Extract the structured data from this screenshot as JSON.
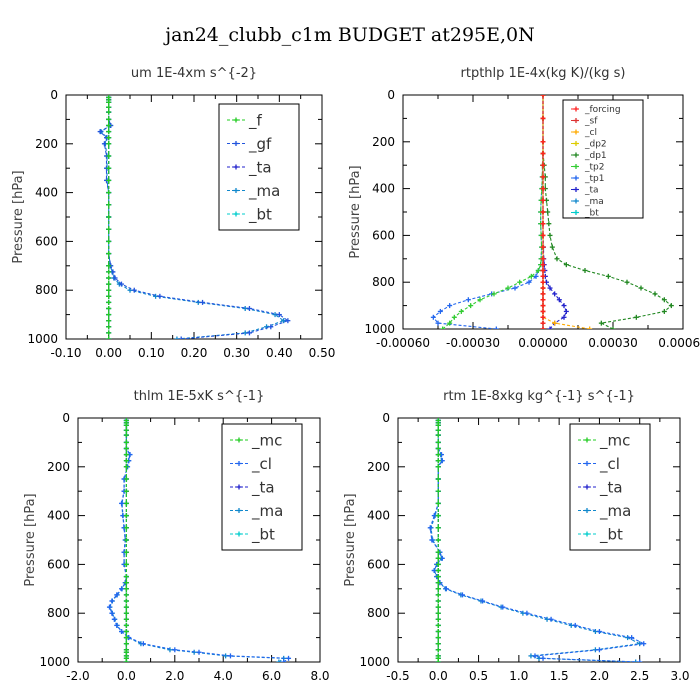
{
  "figure_title": "jan24_clubb_c1m  BUDGET at295E,0N",
  "chart_data": [
    {
      "type": "line",
      "title": "um  1E-4xm s^{-2}",
      "ylabel": "Pressure [hPa]",
      "xlim": [
        -0.1,
        0.5
      ],
      "ylim": [
        1000,
        0
      ],
      "xticks": [
        "-0.10",
        "0.00",
        "0.10",
        "0.20",
        "0.30",
        "0.40",
        "0.50"
      ],
      "yticks": [
        "0",
        "200",
        "400",
        "600",
        "800",
        "1000"
      ],
      "legend_position": "top-right",
      "y": [
        1000,
        975,
        950,
        925,
        900,
        875,
        850,
        825,
        800,
        775,
        750,
        725,
        700,
        650,
        600,
        550,
        500,
        450,
        400,
        350,
        300,
        250,
        200,
        175,
        150,
        125,
        100,
        70,
        50,
        30,
        20,
        10
      ],
      "series": [
        {
          "name": "_f",
          "color": "#22cc22",
          "values": [
            0,
            0,
            0,
            0,
            0,
            0,
            0,
            0,
            0,
            0,
            0,
            0,
            0,
            0,
            0,
            0,
            0,
            0,
            0,
            0,
            0,
            0,
            0,
            0,
            0,
            0,
            0,
            0,
            0,
            0,
            0,
            0
          ]
        },
        {
          "name": "_gf",
          "color": "#2255dd",
          "values": [
            0.17,
            0.33,
            0.38,
            0.42,
            0.4,
            0.33,
            0.22,
            0.12,
            0.06,
            0.03,
            0.015,
            0.01,
            0.005,
            0,
            0,
            0,
            0,
            0,
            0,
            -0.005,
            -0.005,
            -0.005,
            -0.01,
            -0.005,
            -0.02,
            0.005,
            0,
            0,
            0,
            0,
            0,
            0
          ]
        },
        {
          "name": "_ta",
          "color": "#2222cc",
          "values": [
            0,
            0,
            0,
            0,
            0,
            0,
            0,
            0,
            0,
            0,
            0,
            0,
            0,
            0,
            0,
            0,
            0,
            0,
            0,
            0,
            0,
            0,
            0,
            0,
            0,
            0,
            0,
            0,
            0,
            0,
            0,
            0
          ]
        },
        {
          "name": "_ma",
          "color": "#1188cc",
          "values": [
            0.16,
            0.32,
            0.37,
            0.41,
            0.39,
            0.32,
            0.21,
            0.11,
            0.05,
            0.025,
            0.012,
            0.008,
            0.004,
            0,
            0,
            0,
            0,
            0,
            0,
            -0.004,
            -0.004,
            -0.004,
            -0.008,
            -0.004,
            -0.018,
            0.004,
            0,
            0,
            0,
            0,
            0,
            0
          ]
        },
        {
          "name": "_bt",
          "color": "#00cccc",
          "values": [
            0,
            0,
            0,
            0,
            0,
            0,
            0,
            0,
            0,
            0,
            0,
            0,
            0,
            0,
            0,
            0,
            0,
            0,
            0,
            0,
            0,
            0,
            0,
            0,
            0,
            0,
            0,
            0,
            0,
            0,
            0,
            0
          ]
        }
      ]
    },
    {
      "type": "line",
      "title": "rtpthlp  1E-4x(kg K)/(kg s)",
      "ylabel": "Pressure [hPa]",
      "xlim": [
        -0.0006,
        0.0006
      ],
      "ylim": [
        1000,
        0
      ],
      "xticks": [
        "-0.00060",
        "-0.00030",
        "0.00000",
        "0.00030",
        "0.00060"
      ],
      "yticks": [
        "0",
        "200",
        "400",
        "600",
        "800",
        "1000"
      ],
      "legend_position": "top-right",
      "y": [
        1000,
        975,
        950,
        925,
        900,
        875,
        850,
        825,
        800,
        775,
        750,
        725,
        700,
        650,
        600,
        550,
        500,
        450,
        400,
        350,
        300,
        250,
        200,
        100,
        0
      ],
      "series": [
        {
          "name": "_forcing",
          "color": "#ff2222",
          "values": [
            0,
            0,
            0,
            0,
            0,
            0,
            0,
            0,
            0,
            0,
            0,
            0,
            0,
            0,
            0,
            0,
            0,
            0,
            0,
            0,
            0,
            0,
            0,
            0,
            0
          ]
        },
        {
          "name": "_sf",
          "color": "#dd3333",
          "values": [
            0,
            0,
            0,
            0,
            0,
            0,
            0,
            0,
            0,
            0,
            0,
            0,
            0,
            0,
            0,
            0,
            0,
            0,
            0,
            0,
            0,
            0,
            0,
            0,
            0
          ]
        },
        {
          "name": "_cl",
          "color": "#ffaa00",
          "values": [
            0.0002,
            5e-05,
            0,
            0,
            0,
            0,
            0,
            0,
            0,
            0,
            0,
            0,
            0,
            0,
            0,
            0,
            0,
            0,
            0,
            0,
            0,
            0,
            0,
            0,
            0
          ]
        },
        {
          "name": "_dp2",
          "color": "#ddcc00",
          "values": [
            0,
            0,
            0,
            0,
            0,
            0,
            0,
            0,
            0,
            0,
            0,
            0,
            0,
            0,
            0,
            0,
            0,
            0,
            0,
            0,
            0,
            0,
            0,
            0,
            0
          ]
        },
        {
          "name": "_dp1",
          "color": "#228822",
          "values": [
            0.0003,
            0.00025,
            0.0004,
            0.00052,
            0.00055,
            0.00052,
            0.00048,
            0.00042,
            0.00036,
            0.00028,
            0.00018,
            0.0001,
            6e-05,
            4e-05,
            3e-05,
            2.5e-05,
            2e-05,
            1.5e-05,
            1e-05,
            1e-05,
            5e-06,
            0,
            0,
            0,
            0
          ]
        },
        {
          "name": "_tp2",
          "color": "#33cc33",
          "values": [
            -0.00043,
            -0.0004,
            -0.00038,
            -0.00035,
            -0.00031,
            -0.00027,
            -0.00021,
            -0.00015,
            -0.0001,
            -5e-05,
            -2e-05,
            -1e-05,
            -8e-06,
            -6e-06,
            -8e-06,
            -1e-05,
            -1e-05,
            -8e-06,
            -5e-06,
            -3e-06,
            -2e-06,
            0,
            0,
            0,
            0
          ]
        },
        {
          "name": "_tp1",
          "color": "#2266ee",
          "values": [
            -0.0002,
            -0.00045,
            -0.00047,
            -0.00044,
            -0.0004,
            -0.00032,
            -0.00022,
            -0.00012,
            -6e-05,
            -3e-05,
            -2e-05,
            -1e-05,
            -8e-06,
            -6e-06,
            -8e-06,
            -1e-05,
            -1e-05,
            -8e-06,
            -5e-06,
            -3e-06,
            -2e-06,
            0,
            0,
            0,
            0
          ]
        },
        {
          "name": "_ta",
          "color": "#2222cc",
          "values": [
            3e-05,
            5e-05,
            9e-05,
            0.0001,
            9e-05,
            7e-05,
            5e-05,
            3e-05,
            1.5e-05,
            1e-05,
            8e-06,
            5e-06,
            3e-06,
            2e-06,
            0,
            0,
            0,
            0,
            0,
            0,
            0,
            0,
            0,
            0,
            0
          ]
        },
        {
          "name": "_ma",
          "color": "#1188cc",
          "values": [
            0,
            0,
            0,
            0,
            0,
            0,
            0,
            0,
            0,
            0,
            0,
            0,
            0,
            0,
            0,
            0,
            0,
            0,
            0,
            0,
            0,
            0,
            0,
            0,
            0
          ]
        },
        {
          "name": "_bt",
          "color": "#00cccc",
          "values": [
            0,
            0,
            0,
            0,
            0,
            0,
            0,
            0,
            0,
            0,
            0,
            0,
            0,
            0,
            0,
            0,
            0,
            0,
            0,
            0,
            0,
            0,
            0,
            0,
            0
          ]
        }
      ]
    },
    {
      "type": "line",
      "title": "thlm  1E-5xK s^{-1}",
      "ylabel": "Pressure [hPa]",
      "xlim": [
        -2.0,
        8.0
      ],
      "ylim": [
        1000,
        0
      ],
      "xticks": [
        "-2.0",
        "0.0",
        "2.0",
        "4.0",
        "6.0",
        "8.0"
      ],
      "yticks": [
        "0",
        "200",
        "400",
        "600",
        "800",
        "1000"
      ],
      "legend_position": "top-right",
      "y": [
        1000,
        985,
        975,
        960,
        950,
        925,
        900,
        875,
        850,
        825,
        800,
        775,
        750,
        725,
        700,
        675,
        650,
        600,
        550,
        500,
        450,
        400,
        350,
        300,
        250,
        200,
        175,
        150,
        125,
        100,
        70,
        50,
        30,
        20,
        10
      ],
      "series": [
        {
          "name": "_mc",
          "color": "#22cc22",
          "values": [
            0,
            0,
            0,
            0,
            0,
            0,
            0,
            0,
            0,
            0,
            0,
            0,
            0,
            0,
            0,
            0,
            0,
            0,
            0,
            0,
            0,
            0,
            0,
            0,
            0,
            0,
            0,
            0,
            0,
            0,
            0,
            0,
            0,
            0,
            0
          ]
        },
        {
          "name": "_cl",
          "color": "#2266ee",
          "values": [
            6.5,
            6.7,
            4.3,
            3.0,
            2.0,
            0.7,
            0.1,
            -0.2,
            -0.4,
            -0.5,
            -0.6,
            -0.7,
            -0.6,
            -0.4,
            -0.2,
            -0.05,
            0,
            -0.1,
            -0.1,
            -0.05,
            -0.1,
            -0.15,
            -0.2,
            -0.1,
            -0.1,
            0.05,
            0.1,
            0.15,
            0,
            0,
            0,
            0,
            0,
            0,
            0
          ]
        },
        {
          "name": "_ta",
          "color": "#2222cc",
          "values": [
            0,
            0,
            0,
            0,
            0,
            0,
            0,
            0,
            0,
            0,
            0,
            0,
            0,
            0,
            0,
            0,
            0,
            0,
            0,
            0,
            0,
            0,
            0,
            0,
            0,
            0,
            0,
            0,
            0,
            0,
            0,
            0,
            0,
            0,
            0
          ]
        },
        {
          "name": "_ma",
          "color": "#1188cc",
          "values": [
            6.3,
            6.5,
            4.1,
            2.8,
            1.8,
            0.6,
            0.08,
            -0.2,
            -0.38,
            -0.48,
            -0.58,
            -0.68,
            -0.58,
            -0.38,
            -0.18,
            -0.04,
            0,
            -0.09,
            -0.09,
            -0.04,
            -0.09,
            -0.14,
            -0.18,
            -0.09,
            -0.09,
            0.04,
            0.09,
            0.14,
            0,
            0,
            0,
            0,
            0,
            0,
            0
          ]
        },
        {
          "name": "_bt",
          "color": "#00cccc",
          "values": [
            0,
            0,
            0,
            0,
            0,
            0,
            0,
            0,
            0,
            0,
            0,
            0,
            0,
            0,
            0,
            0,
            0,
            0,
            0,
            0,
            0,
            0,
            0,
            0,
            0,
            0,
            0,
            0,
            0,
            0,
            0,
            0,
            0,
            0,
            0
          ]
        }
      ]
    },
    {
      "type": "line",
      "title": "rtm  1E-8xkg kg^{-1} s^{-1}",
      "ylabel": "Pressure [hPa]",
      "xlim": [
        -0.5,
        3.0
      ],
      "ylim": [
        1000,
        0
      ],
      "xticks": [
        "-0.5",
        "0.0",
        "0.5",
        "1.0",
        "1.5",
        "2.0",
        "2.5",
        "3.0"
      ],
      "yticks": [
        "0",
        "200",
        "400",
        "600",
        "800",
        "1000"
      ],
      "legend_position": "top-right",
      "y": [
        1000,
        985,
        975,
        950,
        925,
        900,
        875,
        850,
        825,
        800,
        775,
        750,
        725,
        700,
        675,
        650,
        625,
        600,
        575,
        550,
        500,
        450,
        400,
        350,
        300,
        250,
        200,
        175,
        150,
        125,
        100,
        70,
        50,
        30,
        20,
        10
      ],
      "series": [
        {
          "name": "_mc",
          "color": "#22cc22",
          "values": [
            0,
            0,
            0,
            0,
            0,
            0,
            0,
            0,
            0,
            0,
            0,
            0,
            0,
            0,
            0,
            0,
            0,
            0,
            0,
            0,
            0,
            0,
            0,
            0,
            0,
            0,
            0,
            0,
            0,
            0,
            0,
            0,
            0,
            0,
            0,
            0
          ]
        },
        {
          "name": "_cl",
          "color": "#2266ee",
          "values": [
            2.5,
            1.3,
            1.2,
            2.0,
            2.55,
            2.4,
            2.0,
            1.7,
            1.4,
            1.1,
            0.8,
            0.55,
            0.3,
            0.1,
            0.02,
            -0.02,
            -0.05,
            -0.02,
            0.05,
            0.02,
            -0.08,
            -0.1,
            -0.05,
            0,
            0,
            0,
            0,
            0.05,
            0.04,
            0,
            0,
            0,
            0,
            0,
            0,
            0
          ]
        },
        {
          "name": "_ta",
          "color": "#2222cc",
          "values": [
            0,
            0,
            0,
            0,
            0,
            0,
            0,
            0,
            0,
            0,
            0,
            0,
            0,
            0,
            0,
            0,
            0,
            0,
            0,
            0,
            0,
            0,
            0,
            0,
            0,
            0,
            0,
            0,
            0,
            0,
            0,
            0,
            0,
            0,
            0,
            0
          ]
        },
        {
          "name": "_ma",
          "color": "#1188cc",
          "values": [
            2.45,
            1.25,
            1.15,
            1.95,
            2.5,
            2.35,
            1.95,
            1.65,
            1.35,
            1.05,
            0.78,
            0.53,
            0.28,
            0.09,
            0.02,
            -0.02,
            -0.05,
            -0.02,
            0.04,
            0.02,
            -0.07,
            -0.09,
            -0.04,
            0,
            0,
            0,
            0,
            0.04,
            0.03,
            0,
            0,
            0,
            0,
            0,
            0,
            0
          ]
        },
        {
          "name": "_bt",
          "color": "#00cccc",
          "values": [
            0,
            0,
            0,
            0,
            0,
            0,
            0,
            0,
            0,
            0,
            0,
            0,
            0,
            0,
            0,
            0,
            0,
            0,
            0,
            0,
            0,
            0,
            0,
            0,
            0,
            0,
            0,
            0,
            0,
            0,
            0,
            0,
            0,
            0,
            0,
            0
          ]
        }
      ]
    }
  ]
}
